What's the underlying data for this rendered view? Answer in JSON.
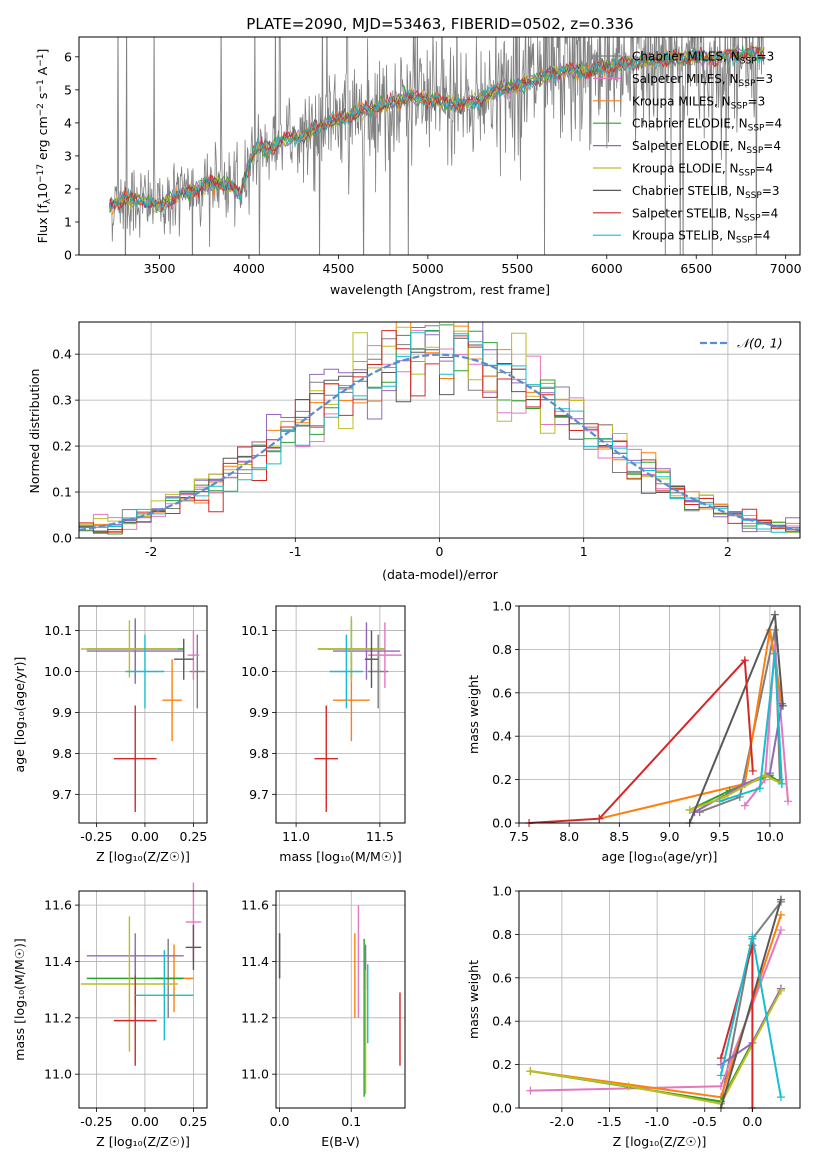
{
  "figure": {
    "title": "PLATE=2090, MJD=53463, FIBERID=0502, z=0.336"
  },
  "colors": {
    "Chabrier MILES": "#7f7f7f",
    "Salpeter MILES": "#e377c2",
    "Kroupa MILES": "#ff7f0e",
    "Chabrier ELODIE": "#2ca02c",
    "Salpeter ELODIE": "#9467bd",
    "Kroupa ELODIE": "#bcbd22",
    "Chabrier STELIB": "#595959",
    "Salpeter STELIB": "#d62728",
    "Kroupa STELIB": "#17becf",
    "normal": "#5b8bd0",
    "data": "#808080"
  },
  "chart_data": [
    {
      "id": "spectrum",
      "type": "line",
      "xlabel": "wavelength [Angstrom, rest frame]",
      "ylabel": "Flux [f_λ 10^-17 erg cm^-2 s^-1 A^-1]",
      "xlim": [
        3050,
        7080
      ],
      "ylim": [
        0,
        6.6
      ],
      "xticks": [
        3500,
        4000,
        4500,
        5000,
        5500,
        6000,
        6500,
        7000
      ],
      "yticks": [
        0,
        1,
        2,
        3,
        4,
        5,
        6
      ],
      "grid": false,
      "legend_position": "right",
      "legend": [
        {
          "label": "Chabrier MILES, N",
          "sub": "SSP",
          "tail": "=3",
          "series": "Chabrier MILES"
        },
        {
          "label": "Salpeter MILES, N",
          "sub": "SSP",
          "tail": "=3",
          "series": "Salpeter MILES"
        },
        {
          "label": "Kroupa MILES, N",
          "sub": "SSP",
          "tail": "=3",
          "series": "Kroupa MILES"
        },
        {
          "label": "Chabrier ELODIE, N",
          "sub": "SSP",
          "tail": "=4",
          "series": "Chabrier ELODIE"
        },
        {
          "label": "Salpeter ELODIE, N",
          "sub": "SSP",
          "tail": "=4",
          "series": "Salpeter ELODIE"
        },
        {
          "label": "Kroupa ELODIE, N",
          "sub": "SSP",
          "tail": "=4",
          "series": "Kroupa ELODIE"
        },
        {
          "label": "Chabrier STELIB, N",
          "sub": "SSP",
          "tail": "=3",
          "series": "Chabrier STELIB"
        },
        {
          "label": "Salpeter STELIB, N",
          "sub": "SSP",
          "tail": "=4",
          "series": "Salpeter STELIB"
        },
        {
          "label": "Kroupa STELIB, N",
          "sub": "SSP",
          "tail": "=4",
          "series": "Kroupa STELIB"
        }
      ],
      "continuum": [
        [
          3200,
          1.45
        ],
        [
          3300,
          1.7
        ],
        [
          3400,
          1.65
        ],
        [
          3500,
          1.5
        ],
        [
          3600,
          1.8
        ],
        [
          3700,
          2.0
        ],
        [
          3800,
          2.2
        ],
        [
          3900,
          2.1
        ],
        [
          3950,
          1.8
        ],
        [
          4000,
          2.8
        ],
        [
          4050,
          3.3
        ],
        [
          4100,
          3.2
        ],
        [
          4200,
          3.5
        ],
        [
          4300,
          3.6
        ],
        [
          4400,
          3.9
        ],
        [
          4500,
          4.1
        ],
        [
          4600,
          4.3
        ],
        [
          4700,
          4.45
        ],
        [
          4800,
          4.6
        ],
        [
          4900,
          4.8
        ],
        [
          5000,
          4.7
        ],
        [
          5100,
          4.6
        ],
        [
          5200,
          4.55
        ],
        [
          5300,
          4.75
        ],
        [
          5400,
          5.0
        ],
        [
          5500,
          5.1
        ],
        [
          5600,
          5.3
        ],
        [
          5700,
          5.5
        ],
        [
          5800,
          5.6
        ],
        [
          5900,
          5.55
        ],
        [
          6000,
          5.7
        ],
        [
          6100,
          5.8
        ],
        [
          6200,
          5.85
        ],
        [
          6300,
          5.9
        ],
        [
          6400,
          5.95
        ],
        [
          6500,
          6.0
        ],
        [
          6600,
          5.95
        ],
        [
          6700,
          6.05
        ],
        [
          6800,
          6.1
        ],
        [
          6880,
          6.1
        ]
      ],
      "data_range": [
        3220,
        6880
      ]
    },
    {
      "id": "residuals",
      "type": "step",
      "xlabel": "(data-model)/error",
      "ylabel": "Normed distribution",
      "xlim": [
        -2.5,
        2.5
      ],
      "ylim": [
        0,
        0.47
      ],
      "xticks": [
        -2,
        -1,
        0,
        1,
        2
      ],
      "yticks": [
        0.0,
        0.1,
        0.2,
        0.3,
        0.4
      ],
      "grid": true,
      "legend_position": "top-right",
      "legend_label": "𝒩(0, 1)",
      "bin_width": 0.1
    },
    {
      "id": "age_vs_Z",
      "type": "errorbar",
      "xlabel": "Z [log10(Z/Z☉)]",
      "ylabel": "age [log10(age/yr)]",
      "xlim": [
        -0.34,
        0.32
      ],
      "ylim": [
        9.63,
        10.16
      ],
      "xticks": [
        -0.25,
        0.0,
        0.25
      ],
      "yticks": [
        9.7,
        9.8,
        9.9,
        10.0,
        10.1
      ],
      "points": [
        {
          "s": "Chabrier MILES",
          "x": 0.27,
          "xe": 0.04,
          "y": 10.0,
          "ye": 0.09
        },
        {
          "s": "Salpeter MILES",
          "x": 0.25,
          "xe": 0.03,
          "y": 10.04,
          "ye": 0.06
        },
        {
          "s": "Kroupa MILES",
          "x": 0.14,
          "xe": 0.05,
          "y": 9.93,
          "ye": 0.1
        },
        {
          "s": "Chabrier ELODIE",
          "x": -0.05,
          "xe": 0.25,
          "y": 10.055,
          "ye": 0.07
        },
        {
          "s": "Salpeter ELODIE",
          "x": -0.05,
          "xe": 0.25,
          "y": 10.05,
          "ye": 0.08
        },
        {
          "s": "Kroupa ELODIE",
          "x": -0.08,
          "xe": 0.25,
          "y": 10.055,
          "ye": 0.07
        },
        {
          "s": "Chabrier STELIB",
          "x": 0.2,
          "xe": 0.05,
          "y": 10.03,
          "ye": 0.05
        },
        {
          "s": "Salpeter STELIB",
          "x": -0.05,
          "xe": 0.11,
          "y": 9.787,
          "ye": 0.13
        },
        {
          "s": "Kroupa STELIB",
          "x": 0.0,
          "xe": 0.1,
          "y": 10.0,
          "ye": 0.09
        }
      ]
    },
    {
      "id": "age_vs_mass",
      "type": "errorbar",
      "xlabel": "mass [log10(M/M☉)]",
      "ylabel": "",
      "xlim": [
        10.88,
        11.65
      ],
      "ylim": [
        9.63,
        10.16
      ],
      "xticks": [
        11.0,
        11.5
      ],
      "yticks": [
        9.7,
        9.8,
        9.9,
        10.0,
        10.1
      ],
      "points": [
        {
          "s": "Chabrier MILES",
          "x": 11.49,
          "xe": 0.06,
          "y": 10.0,
          "ye": 0.09
        },
        {
          "s": "Salpeter MILES",
          "x": 11.53,
          "xe": 0.1,
          "y": 10.04,
          "ye": 0.08
        },
        {
          "s": "Kroupa MILES",
          "x": 11.33,
          "xe": 0.11,
          "y": 9.93,
          "ye": 0.1
        },
        {
          "s": "Chabrier ELODIE",
          "x": 11.33,
          "xe": 0.2,
          "y": 10.055,
          "ye": 0.07
        },
        {
          "s": "Salpeter ELODIE",
          "x": 11.42,
          "xe": 0.2,
          "y": 10.05,
          "ye": 0.07
        },
        {
          "s": "Kroupa ELODIE",
          "x": 11.33,
          "xe": 0.2,
          "y": 10.055,
          "ye": 0.08
        },
        {
          "s": "Chabrier STELIB",
          "x": 11.45,
          "xe": 0.04,
          "y": 10.03,
          "ye": 0.07
        },
        {
          "s": "Salpeter STELIB",
          "x": 11.18,
          "xe": 0.07,
          "y": 9.787,
          "ye": 0.13
        },
        {
          "s": "Kroupa STELIB",
          "x": 11.3,
          "xe": 0.1,
          "y": 10.0,
          "ye": 0.09
        }
      ]
    },
    {
      "id": "weights_vs_age",
      "type": "line",
      "xlabel": "age [log10(age/yr)]",
      "ylabel": "mass weight",
      "xlim": [
        7.5,
        10.3
      ],
      "ylim": [
        0,
        1.0
      ],
      "xticks": [
        7.5,
        8.0,
        8.5,
        9.0,
        9.5,
        10.0
      ],
      "yticks": [
        0.0,
        0.2,
        0.4,
        0.6,
        0.8,
        1.0
      ],
      "grid": true,
      "series": [
        {
          "s": "Chabrier MILES",
          "pts": [
            [
              9.3,
              0.05
            ],
            [
              9.7,
              0.12
            ],
            [
              10.05,
              0.89
            ],
            [
              10.1,
              0.2
            ]
          ]
        },
        {
          "s": "Salpeter MILES",
          "pts": [
            [
              9.75,
              0.08
            ],
            [
              9.95,
              0.2
            ],
            [
              10.05,
              0.82
            ],
            [
              10.18,
              0.1
            ]
          ]
        },
        {
          "s": "Kroupa MILES",
          "pts": [
            [
              8.3,
              0.02
            ],
            [
              9.75,
              0.18
            ],
            [
              10.0,
              0.89
            ],
            [
              10.12,
              0.55
            ]
          ]
        },
        {
          "s": "Chabrier ELODIE",
          "pts": [
            [
              9.2,
              0.06
            ],
            [
              9.6,
              0.15
            ],
            [
              10.0,
              0.22
            ],
            [
              10.12,
              0.18
            ]
          ]
        },
        {
          "s": "Salpeter ELODIE",
          "pts": [
            [
              9.25,
              0.05
            ],
            [
              9.75,
              0.18
            ],
            [
              10.0,
              0.23
            ],
            [
              10.12,
              0.55
            ]
          ]
        },
        {
          "s": "Kroupa ELODIE",
          "pts": [
            [
              9.2,
              0.06
            ],
            [
              9.55,
              0.12
            ],
            [
              9.95,
              0.22
            ],
            [
              10.12,
              0.18
            ]
          ]
        },
        {
          "s": "Chabrier STELIB",
          "pts": [
            [
              9.2,
              0.0
            ],
            [
              10.05,
              0.96
            ],
            [
              10.13,
              0.54
            ]
          ]
        },
        {
          "s": "Salpeter STELIB",
          "pts": [
            [
              7.6,
              0.0
            ],
            [
              8.3,
              0.02
            ],
            [
              9.75,
              0.75
            ],
            [
              9.83,
              0.24
            ]
          ]
        },
        {
          "s": "Kroupa STELIB",
          "pts": [
            [
              9.5,
              0.1
            ],
            [
              9.9,
              0.16
            ],
            [
              10.05,
              0.78
            ],
            [
              10.12,
              0.18
            ]
          ]
        }
      ]
    },
    {
      "id": "mass_vs_Z",
      "type": "errorbar",
      "xlabel": "Z [log10(Z/Z☉)]",
      "ylabel": "mass [log10(M/M☉)]",
      "xlim": [
        -0.34,
        0.32
      ],
      "ylim": [
        10.88,
        11.65
      ],
      "xticks": [
        -0.25,
        0.0,
        0.25
      ],
      "yticks": [
        11.0,
        11.2,
        11.4,
        11.6
      ],
      "points": [
        {
          "s": "Chabrier MILES",
          "x": 0.12,
          "xe": 0.07,
          "y": 11.34,
          "ye": 0.14
        },
        {
          "s": "Salpeter MILES",
          "x": 0.25,
          "xe": 0.04,
          "y": 11.54,
          "ye": 0.14
        },
        {
          "s": "Kroupa MILES",
          "x": 0.15,
          "xe": 0.1,
          "y": 11.34,
          "ye": 0.12
        },
        {
          "s": "Chabrier ELODIE",
          "x": -0.05,
          "xe": 0.25,
          "y": 11.34,
          "ye": 0.1
        },
        {
          "s": "Salpeter ELODIE",
          "x": -0.05,
          "xe": 0.25,
          "y": 11.42,
          "ye": 0.08
        },
        {
          "s": "Kroupa ELODIE",
          "x": -0.08,
          "xe": 0.25,
          "y": 11.32,
          "ye": 0.24
        },
        {
          "s": "Chabrier STELIB",
          "x": 0.25,
          "xe": 0.04,
          "y": 11.45,
          "ye": 0.08
        },
        {
          "s": "Salpeter STELIB",
          "x": -0.05,
          "xe": 0.11,
          "y": 11.19,
          "ye": 0.16
        },
        {
          "s": "Kroupa STELIB",
          "x": 0.1,
          "xe": 0.15,
          "y": 11.28,
          "ye": 0.16
        }
      ]
    },
    {
      "id": "mass_vs_ebv",
      "type": "errorbar",
      "xlabel": "E(B-V)",
      "ylabel": "",
      "xlim": [
        -0.005,
        0.175
      ],
      "ylim": [
        10.88,
        11.65
      ],
      "xticks": [
        0.0,
        0.1
      ],
      "yticks": [
        11.0,
        11.2,
        11.4,
        11.6
      ],
      "points": [
        {
          "s": "Chabrier MILES",
          "x": 0.0,
          "xe": 0.0,
          "y": 11.42,
          "ye": 0.08
        },
        {
          "s": "Salpeter MILES",
          "x": 0.11,
          "xe": 0.0,
          "y": 11.4,
          "ye": 0.2
        },
        {
          "s": "Kroupa MILES",
          "x": 0.105,
          "xe": 0.0,
          "y": 11.35,
          "ye": 0.15
        },
        {
          "s": "Chabrier ELODIE",
          "x": 0.118,
          "xe": 0.0,
          "y": 11.2,
          "ye": 0.28
        },
        {
          "s": "Salpeter ELODIE",
          "x": 0.12,
          "xe": 0.0,
          "y": 11.38,
          "ye": 0.08
        },
        {
          "s": "Kroupa ELODIE",
          "x": 0.12,
          "xe": 0.0,
          "y": 11.15,
          "ye": 0.22
        },
        {
          "s": "Chabrier STELIB",
          "x": 0.0,
          "xe": 0.0,
          "y": 11.42,
          "ye": 0.08
        },
        {
          "s": "Salpeter STELIB",
          "x": 0.168,
          "xe": 0.0,
          "y": 11.16,
          "ye": 0.13
        },
        {
          "s": "Kroupa STELIB",
          "x": 0.123,
          "xe": 0.0,
          "y": 11.25,
          "ye": 0.14
        }
      ]
    },
    {
      "id": "weights_vs_Z",
      "type": "line",
      "xlabel": "Z [log10(Z/Z☉)]",
      "ylabel": "mass weight",
      "xlim": [
        -2.45,
        0.5
      ],
      "ylim": [
        0,
        1.0
      ],
      "xticks": [
        -2.0,
        -1.5,
        -1.0,
        -0.5,
        0.0
      ],
      "yticks": [
        0.0,
        0.2,
        0.4,
        0.6,
        0.8,
        1.0
      ],
      "grid": true,
      "series": [
        {
          "s": "Chabrier MILES",
          "pts": [
            [
              -0.33,
              0.02
            ],
            [
              0.0,
              0.78
            ],
            [
              0.3,
              0.95
            ]
          ]
        },
        {
          "s": "Salpeter MILES",
          "pts": [
            [
              -2.33,
              0.08
            ],
            [
              -0.33,
              0.1
            ],
            [
              0.3,
              0.82
            ]
          ]
        },
        {
          "s": "Kroupa MILES",
          "pts": [
            [
              -2.33,
              0.17
            ],
            [
              -0.33,
              0.05
            ],
            [
              0.3,
              0.89
            ]
          ]
        },
        {
          "s": "Chabrier ELODIE",
          "pts": [
            [
              -2.33,
              0.17
            ],
            [
              -0.33,
              0.03
            ],
            [
              0.3,
              0.55
            ]
          ]
        },
        {
          "s": "Salpeter ELODIE",
          "pts": [
            [
              -0.33,
              0.2
            ],
            [
              0.0,
              0.3
            ],
            [
              0.3,
              0.55
            ]
          ]
        },
        {
          "s": "Kroupa ELODIE",
          "pts": [
            [
              -2.33,
              0.17
            ],
            [
              -1.3,
              0.1
            ],
            [
              -0.33,
              0.02
            ],
            [
              0.3,
              0.54
            ]
          ]
        },
        {
          "s": "Chabrier STELIB",
          "pts": [
            [
              -0.33,
              0.0
            ],
            [
              0.3,
              0.96
            ]
          ]
        },
        {
          "s": "Salpeter STELIB",
          "pts": [
            [
              -0.33,
              0.23
            ],
            [
              0.0,
              0.75
            ],
            [
              0.0,
              0.0
            ]
          ]
        },
        {
          "s": "Kroupa STELIB",
          "pts": [
            [
              -0.33,
              0.15
            ],
            [
              0.0,
              0.79
            ],
            [
              0.3,
              0.05
            ]
          ]
        }
      ]
    }
  ]
}
